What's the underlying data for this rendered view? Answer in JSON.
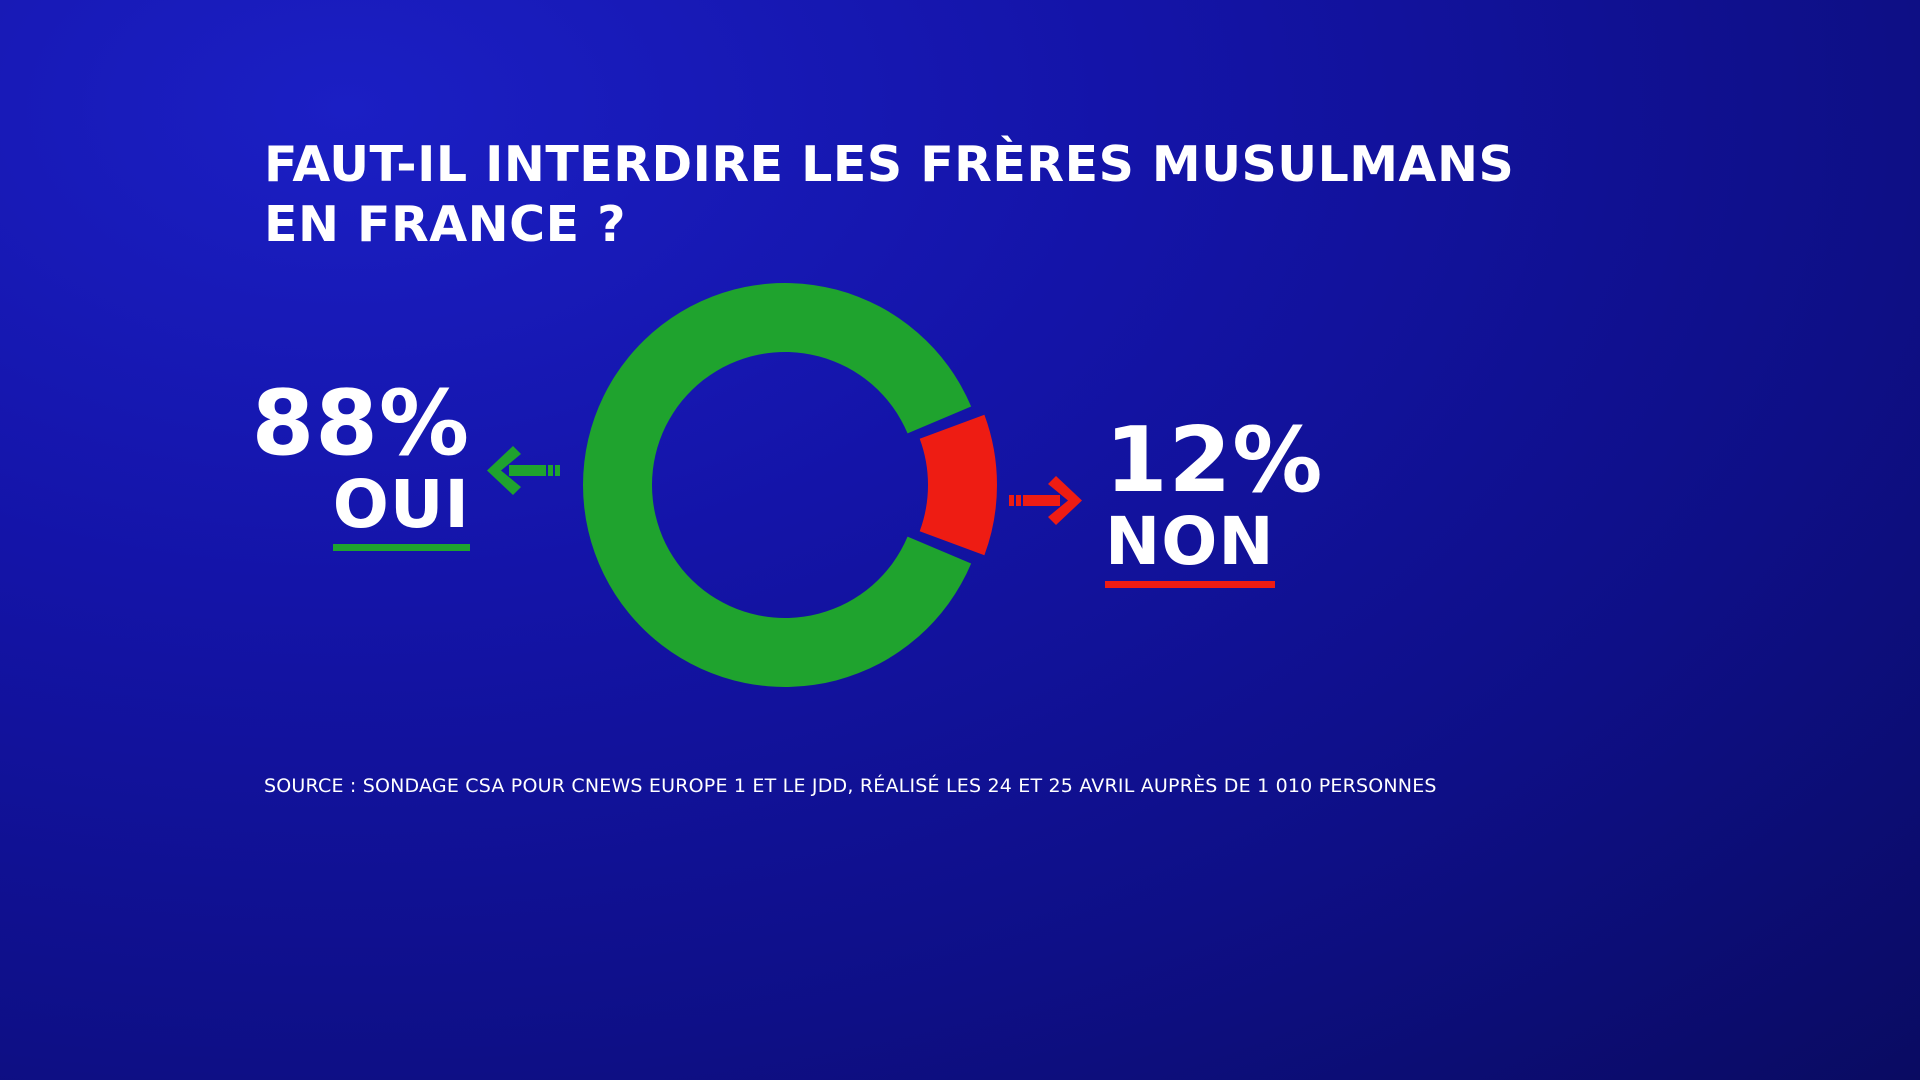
{
  "title": {
    "line1": "FAUT-IL INTERDIRE LES FRÈRES MUSULMANS",
    "line2": "EN FRANCE ?"
  },
  "labels": {
    "yes_percent": "88%",
    "yes_text": "OUI",
    "no_percent": "12%",
    "no_text": "NON"
  },
  "source": "SOURCE : SONDAGE CSA POUR CNEWS EUROPE 1 ET LE JDD, RÉALISÉ LES 24 ET 25 AVRIL AUPRÈS DE 1 010 PERSONNES",
  "colors": {
    "background": "#1414a8",
    "yes": "#1fa32e",
    "no": "#ee1c13",
    "text": "#ffffff"
  },
  "icons": {
    "yes_arrow": "arrow-left-icon",
    "no_arrow": "arrow-right-icon"
  },
  "chart_data": {
    "type": "pie",
    "variant": "donut",
    "title": "FAUT-IL INTERDIRE LES FRÈRES MUSULMANS EN FRANCE ?",
    "series": [
      {
        "name": "OUI",
        "value": 88,
        "color": "#1fa32e"
      },
      {
        "name": "NON",
        "value": 12,
        "color": "#ee1c13"
      }
    ],
    "unit": "%",
    "no_slice_centered_on": "right",
    "no_slice_exploded": true,
    "legend": "none"
  }
}
